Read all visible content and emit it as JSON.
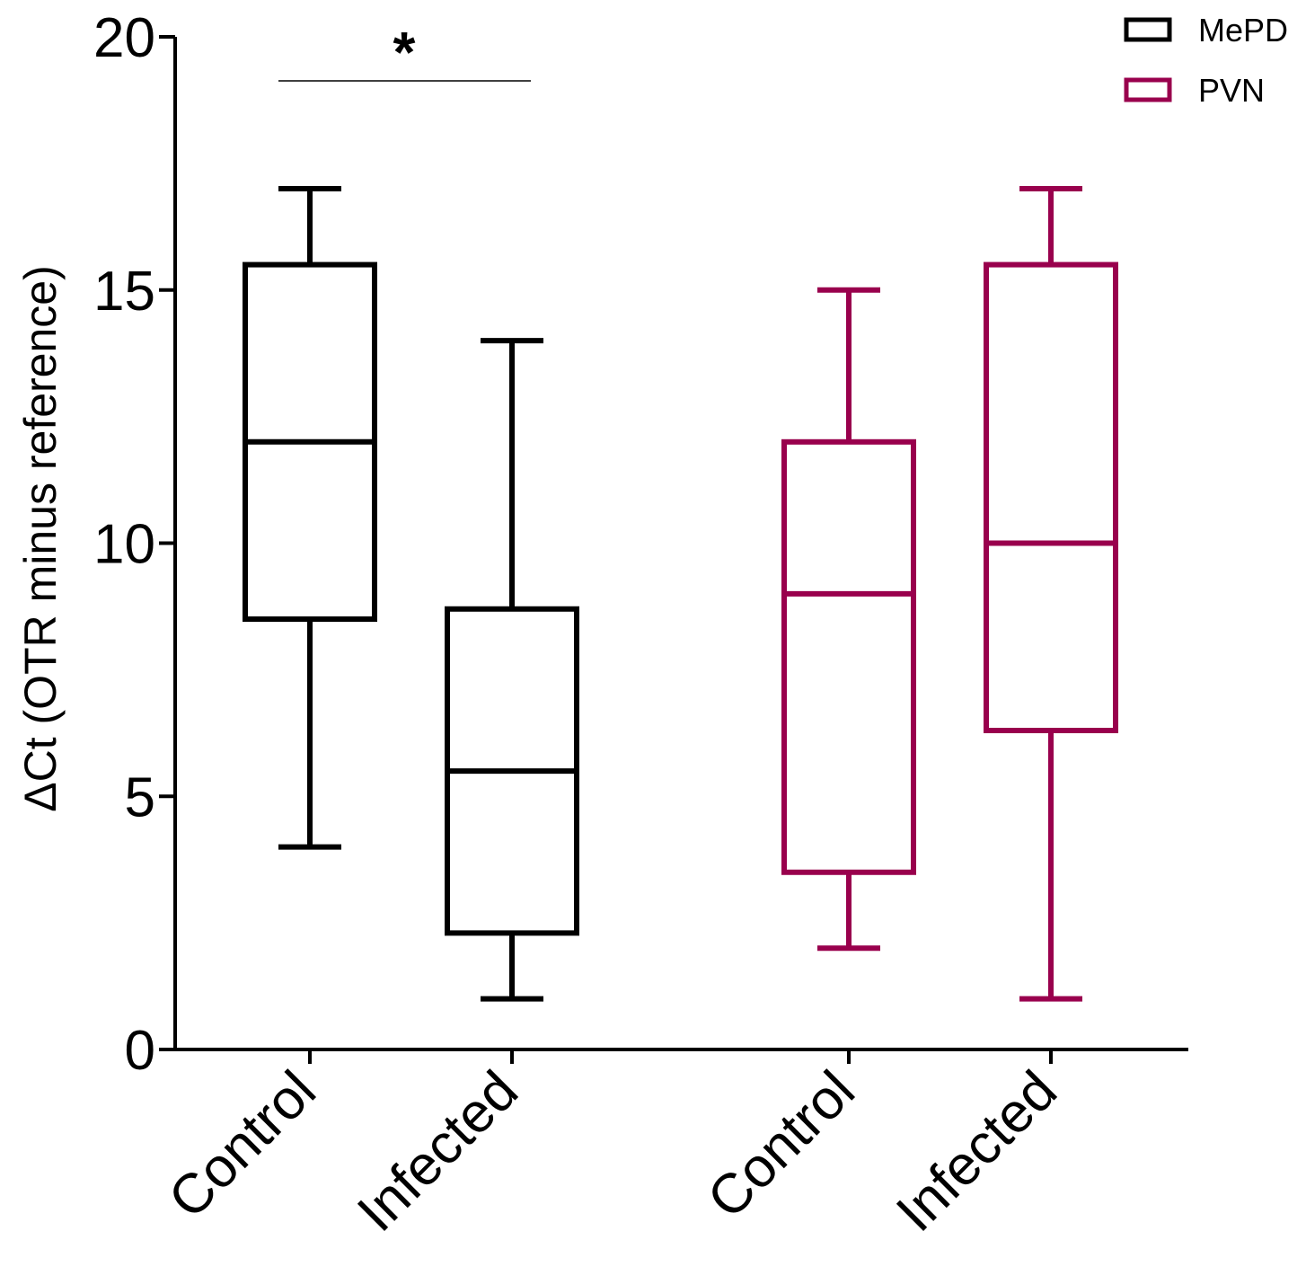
{
  "chart_data": {
    "type": "box",
    "ylabel": "ΔCt (OTR minus reference)",
    "xlabel": "",
    "ylim": [
      0,
      20
    ],
    "yticks": [
      0,
      5,
      10,
      15,
      20
    ],
    "categories": [
      "Control",
      "Infected",
      "Control",
      "Infected"
    ],
    "series": [
      {
        "name": "MePD",
        "color": "#000000",
        "boxes": [
          {
            "category": "Control",
            "min": 4,
            "q1": 8.5,
            "median": 12,
            "q3": 15.5,
            "max": 17
          },
          {
            "category": "Infected",
            "min": 1,
            "q1": 2.3,
            "median": 5.5,
            "q3": 8.7,
            "max": 14
          }
        ]
      },
      {
        "name": "PVN",
        "color": "#99004d",
        "boxes": [
          {
            "category": "Control",
            "min": 2,
            "q1": 3.5,
            "median": 9,
            "q3": 12,
            "max": 15
          },
          {
            "category": "Infected",
            "min": 1,
            "q1": 6.3,
            "median": 10,
            "q3": 15.5,
            "max": 17
          }
        ]
      }
    ],
    "annotations": [
      {
        "text": "*",
        "between": [
          "MePD Control",
          "MePD Infected"
        ]
      }
    ],
    "legend_position": "top-right",
    "grid": false
  }
}
